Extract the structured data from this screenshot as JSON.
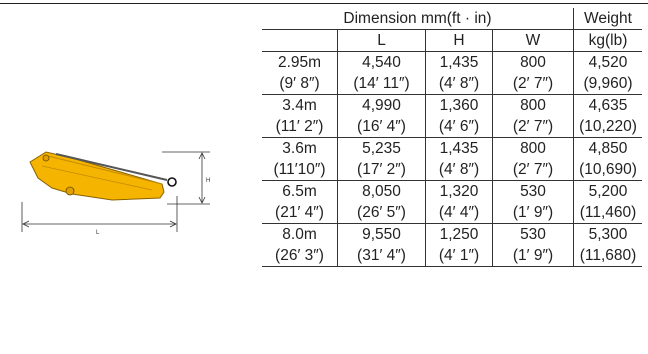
{
  "figure": {
    "label_h": "H",
    "label_l": "L"
  },
  "table": {
    "header": {
      "dimension": "Dimension mm(ft · in)",
      "weight": "Weight",
      "col_l": "L",
      "col_h": "H",
      "col_w": "W",
      "weight_unit": "kg(lb)"
    },
    "rows": [
      {
        "metric": [
          "2.95m",
          "4,540",
          "1,435",
          "800",
          "4,520"
        ],
        "imperial": [
          "(9′ 8″)",
          "(14′ 11″)",
          "(4′ 8″)",
          "(2′ 7″)",
          "(9,960)"
        ]
      },
      {
        "metric": [
          "3.4m",
          "4,990",
          "1,360",
          "800",
          "4,635"
        ],
        "imperial": [
          "(11′ 2″)",
          "(16′ 4″)",
          "(4′ 6″)",
          "(2′ 7″)",
          "(10,220)"
        ]
      },
      {
        "metric": [
          "3.6m",
          "5,235",
          "1,435",
          "800",
          "4,850"
        ],
        "imperial": [
          "(11′10″)",
          "(17′ 2″)",
          "(4′ 8″)",
          "(2′ 7″)",
          "(10,690)"
        ]
      },
      {
        "metric": [
          "6.5m",
          "8,050",
          "1,320",
          "530",
          "5,200"
        ],
        "imperial": [
          "(21′ 4″)",
          "(26′ 5″)",
          "(4′ 4″)",
          "(1′ 9″)",
          "(11,460)"
        ]
      },
      {
        "metric": [
          "8.0m",
          "9,550",
          "1,250",
          "530",
          "5,300"
        ],
        "imperial": [
          "(26′ 3″)",
          "(31′ 4″)",
          "(4′ 1″)",
          "(1′ 9″)",
          "(11,680)"
        ]
      }
    ]
  }
}
